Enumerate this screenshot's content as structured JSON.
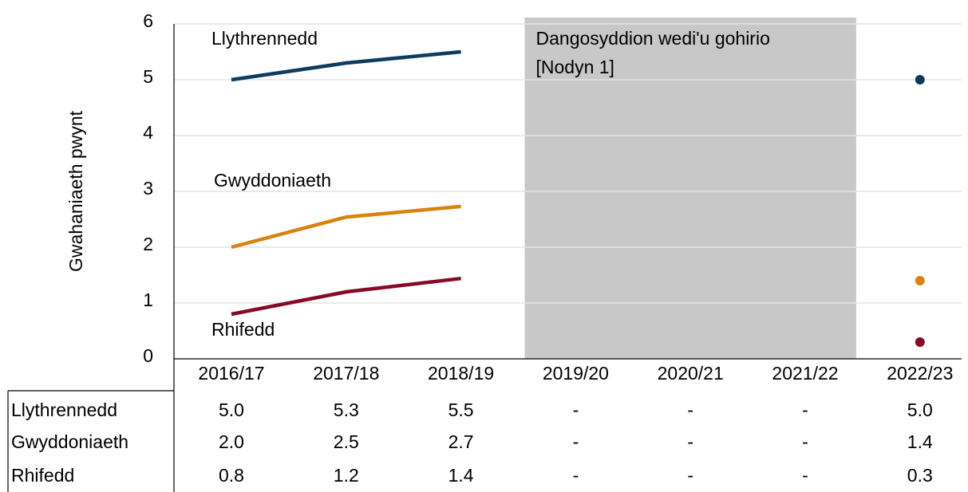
{
  "chart_data": {
    "type": "line",
    "ylabel": "Gwahaniaeth pwynt",
    "categories": [
      "2016/17",
      "2017/18",
      "2018/19",
      "2019/20",
      "2020/21",
      "2021/22",
      "2022/23"
    ],
    "series": [
      {
        "name": "Llythrennedd",
        "color": "#0e3b5f",
        "values": [
          5.0,
          5.3,
          5.5,
          null,
          null,
          null,
          5.0
        ],
        "value_labels": [
          "5.0",
          "5.3",
          "5.5",
          "-",
          "-",
          "-",
          "5.0"
        ]
      },
      {
        "name": "Gwyddoniaeth",
        "color": "#d8830f",
        "values": [
          2.0,
          2.54,
          2.73,
          null,
          null,
          null,
          1.4
        ],
        "value_labels": [
          "2.0",
          "2.5",
          "2.7",
          "-",
          "-",
          "-",
          "1.4"
        ]
      },
      {
        "name": "Rhifedd",
        "color": "#850a23",
        "values": [
          0.8,
          1.2,
          1.44,
          null,
          null,
          null,
          0.3
        ],
        "value_labels": [
          "0.8",
          "1.2",
          "1.4",
          "-",
          "-",
          "-",
          "0.3"
        ]
      }
    ],
    "annotation": [
      "Dangosyddion wedi'u gohirio",
      "[Nodyn 1]"
    ],
    "ylim": [
      0,
      6
    ],
    "yticks": [
      0,
      1,
      2,
      3,
      4,
      5,
      6
    ],
    "grid": true
  }
}
